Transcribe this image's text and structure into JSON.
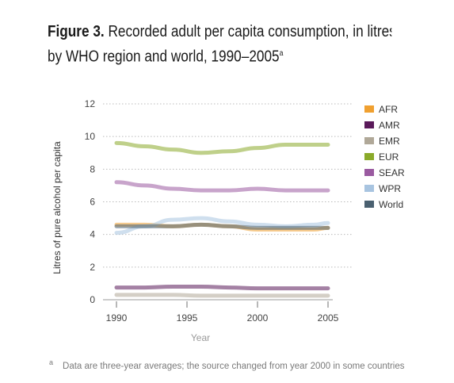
{
  "header": {
    "figure_label": "Figure 3.",
    "title_line1": "Recorded adult per capita consumption, in litres of",
    "title_line2": "by WHO region and world, 1990–2005",
    "title_mark": "a"
  },
  "footnote": {
    "mark": "a",
    "text": "Data are three-year averages; the source changed from year 2000 in some countries"
  },
  "chart_data": {
    "type": "line",
    "title": "Recorded adult per capita consumption, in litres of pure alcohol, by WHO region and world, 1990–2005",
    "xlabel": "Year",
    "ylabel": "Litres of pure alcohol per capita",
    "xlim": [
      1990,
      2005
    ],
    "ylim": [
      0,
      12
    ],
    "x_ticks": [
      "1990",
      "1995",
      "2000",
      "2005"
    ],
    "y_ticks": [
      "0",
      "2",
      "4",
      "6",
      "8",
      "10",
      "12"
    ],
    "grid": "horizontal dotted",
    "legend_position": "right",
    "x": [
      1990,
      1992,
      1994,
      1996,
      1998,
      2000,
      2002,
      2004,
      2005
    ],
    "series": [
      {
        "name": "AFR",
        "color": "#f0a030",
        "values": [
          4.6,
          4.6,
          4.5,
          4.6,
          4.5,
          4.3,
          4.3,
          4.3,
          4.4
        ]
      },
      {
        "name": "AMR",
        "color": "#5a1a5a",
        "values": [
          0.75,
          0.75,
          0.8,
          0.8,
          0.75,
          0.7,
          0.7,
          0.7,
          0.7
        ]
      },
      {
        "name": "EMR",
        "color": "#b0a898",
        "values": [
          0.3,
          0.3,
          0.3,
          0.25,
          0.25,
          0.25,
          0.25,
          0.25,
          0.25
        ]
      },
      {
        "name": "EUR",
        "color": "#8aaa2a",
        "values": [
          9.6,
          9.4,
          9.2,
          9.0,
          9.1,
          9.3,
          9.5,
          9.5,
          9.5
        ]
      },
      {
        "name": "SEAR",
        "color": "#9a5aa0",
        "values": [
          7.2,
          7.0,
          6.8,
          6.7,
          6.7,
          6.8,
          6.7,
          6.7,
          6.7
        ]
      },
      {
        "name": "WPR",
        "color": "#a8c4e0",
        "values": [
          4.1,
          4.5,
          4.9,
          5.0,
          4.8,
          4.6,
          4.5,
          4.6,
          4.7
        ]
      },
      {
        "name": "World",
        "color": "#4a6070",
        "values": [
          4.5,
          4.5,
          4.5,
          4.6,
          4.5,
          4.4,
          4.4,
          4.4,
          4.4
        ]
      }
    ]
  }
}
